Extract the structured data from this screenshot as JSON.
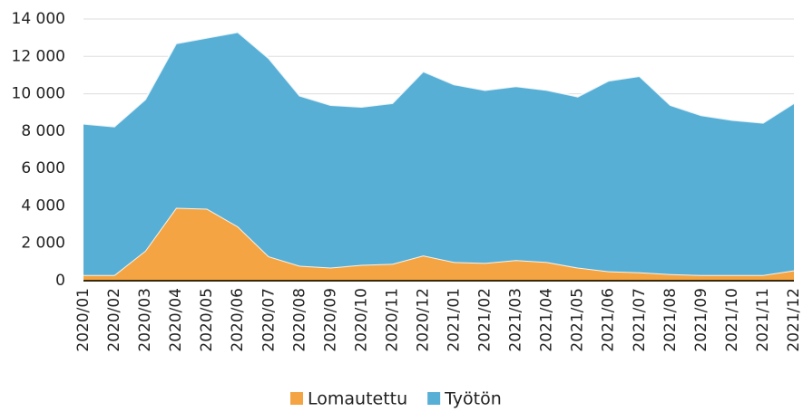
{
  "chart_data": {
    "type": "stacked_area",
    "categories": [
      "2020/01",
      "2020/02",
      "2020/03",
      "2020/04",
      "2020/05",
      "2020/06",
      "2020/07",
      "2020/08",
      "2020/09",
      "2020/10",
      "2020/11",
      "2020/12",
      "2021/01",
      "2021/02",
      "2021/03",
      "2021/04",
      "2021/05",
      "2021/06",
      "2021/07",
      "2021/08",
      "2021/09",
      "2021/10",
      "2021/11",
      "2021/12"
    ],
    "series": [
      {
        "name": "Lomautettu",
        "color": "#f4a442",
        "values": [
          300,
          300,
          1600,
          3900,
          3850,
          2900,
          1300,
          800,
          700,
          850,
          900,
          1350,
          1000,
          950,
          1100,
          1000,
          700,
          500,
          450,
          350,
          300,
          300,
          300,
          550
        ]
      },
      {
        "name": "Työtön",
        "color": "#58afd6",
        "values": [
          8100,
          7950,
          8100,
          8800,
          9150,
          10400,
          10600,
          9100,
          8700,
          8450,
          8600,
          9850,
          9500,
          9250,
          9300,
          9200,
          9150,
          10200,
          10500,
          9050,
          8550,
          8300,
          8150,
          8950
        ]
      }
    ],
    "ylim": [
      0,
      14000
    ],
    "yticks": [
      0,
      {
        "value": 2000,
        "label": "2 000"
      },
      {
        "value": 4000,
        "label": "4 000"
      },
      {
        "value": 6000,
        "label": "6 000"
      },
      {
        "value": 8000,
        "label": "8 000"
      },
      {
        "value": 10000,
        "label": "10 000"
      },
      {
        "value": 12000,
        "label": "12 000"
      },
      {
        "value": 14000,
        "label": "14 000"
      }
    ],
    "grid": true,
    "legend": "bottom"
  }
}
